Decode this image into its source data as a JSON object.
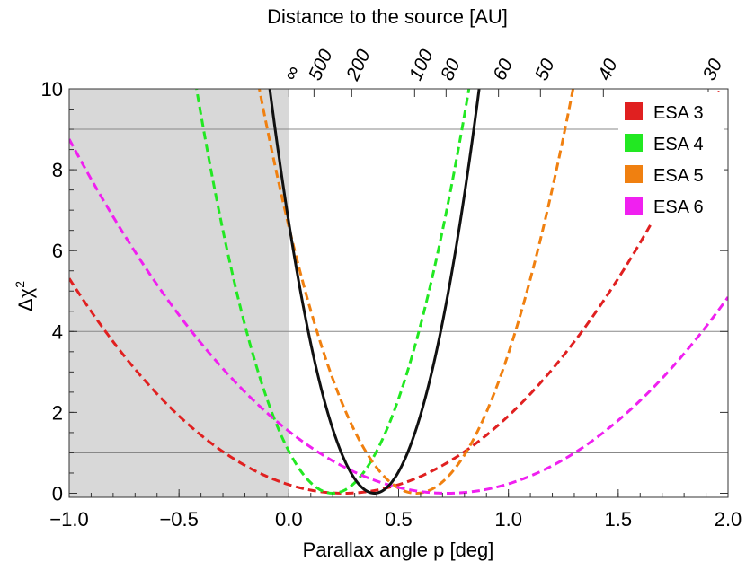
{
  "chart_data": {
    "type": "line",
    "xlabel": "Parallax angle p [deg]",
    "ylabel_base": "Δχ",
    "ylabel_sup": "2",
    "top_xlabel": "Distance to the source [AU]",
    "xlim": [
      -1.0,
      2.0
    ],
    "ylim": [
      -0.1,
      10
    ],
    "x_ticks": [
      -1.0,
      -0.5,
      0.0,
      0.5,
      1.0,
      1.5,
      2.0
    ],
    "x_tick_labels": [
      "−1.0",
      "−0.5",
      "0.0",
      "0.5",
      "1.0",
      "1.5",
      "2.0"
    ],
    "y_ticks": [
      0,
      2,
      4,
      6,
      8,
      10
    ],
    "y_tick_labels": [
      "0",
      "2",
      "4",
      "6",
      "8",
      "10"
    ],
    "reference_lines": [
      1,
      4,
      9
    ],
    "shaded_region": {
      "x_from": -1.0,
      "x_to": 0.0,
      "color": "#d8d8d8"
    },
    "top_ticks": [
      {
        "label": "∞",
        "p": 0.0
      },
      {
        "label": "500",
        "p": 0.1147
      },
      {
        "label": "200",
        "p": 0.2865
      },
      {
        "label": "100",
        "p": 0.5729
      },
      {
        "label": "80",
        "p": 0.7162
      },
      {
        "label": "60",
        "p": 0.9549
      },
      {
        "label": "50",
        "p": 1.1459
      },
      {
        "label": "40",
        "p": 1.4324
      },
      {
        "label": "30",
        "p": 1.9099
      }
    ],
    "series": [
      {
        "name": "ESA 3",
        "color": "#e02020",
        "style": "dashed",
        "p0": 0.25,
        "a": 3.4
      },
      {
        "name": "ESA 4",
        "color": "#22e822",
        "style": "dashed",
        "p0": 0.2,
        "a": 26.0
      },
      {
        "name": "ESA 5",
        "color": "#f08010",
        "style": "dashed",
        "p0": 0.58,
        "a": 19.6
      },
      {
        "name": "ESA 6",
        "color": "#f020f0",
        "style": "dashed",
        "p0": 0.72,
        "a": 2.96
      },
      {
        "name": "",
        "color": "#111111",
        "style": "solid",
        "p0": 0.39,
        "a": 44.0
      }
    ],
    "legend_position": "top-right"
  }
}
